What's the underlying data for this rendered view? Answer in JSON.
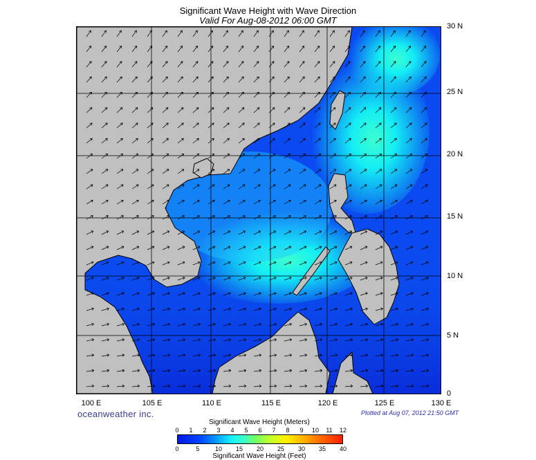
{
  "title": "Significant Wave Height with Wave Direction",
  "subtitle": "Valid For Aug-08-2012 06:00 GMT",
  "lat_labels": [
    "30 N",
    "25 N",
    "20 N",
    "15 N",
    "10 N",
    "5 N",
    "0"
  ],
  "lon_labels": [
    "100 E",
    "105 E",
    "110 E",
    "115 E",
    "120 E",
    "125 E",
    "130 E"
  ],
  "brand": "oceanweather inc.",
  "plotted": "Plotted at Aug 07, 2012 21:50 GMT",
  "colorbar": {
    "title_meters": "Significant Wave Height (Meters)",
    "title_feet": "Significant Wave Height (Feet)",
    "meter_ticks": [
      "0",
      "1",
      "2",
      "3",
      "4",
      "5",
      "6",
      "7",
      "8",
      "9",
      "10",
      "11",
      "12"
    ],
    "feet_ticks": [
      "0",
      "5",
      "10",
      "15",
      "20",
      "25",
      "30",
      "35",
      "40"
    ]
  },
  "colors": {
    "land": "#c0c0c0",
    "water_low": "#0b3ee0",
    "water_high": "#18f2f0",
    "border": "#000000"
  }
}
